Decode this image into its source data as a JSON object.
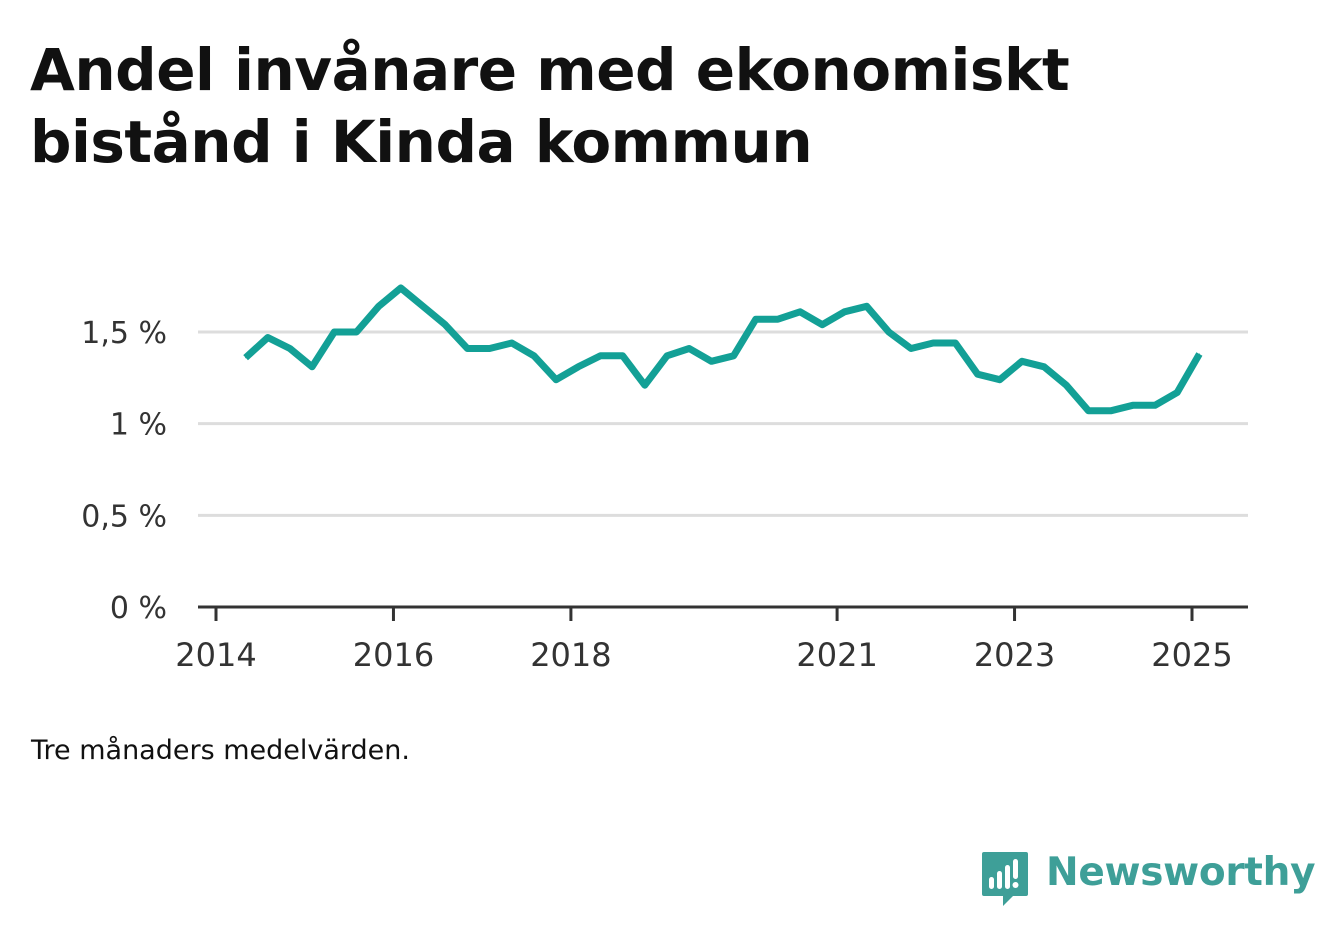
{
  "title": "Andel invånare med ekonomiskt bistånd i Kinda kommun",
  "note": "Tre månaders medelvärden.",
  "brand": {
    "name": "Newsworthy",
    "icon": "bar-chart-speech-bubble-icon",
    "color": "#3e9f98"
  },
  "chart_data": {
    "type": "line",
    "title": "Andel invånare med ekonomiskt bistånd i Kinda kommun",
    "xlabel": "",
    "ylabel": "",
    "x_ticks": [
      "2014",
      "2016",
      "2018",
      "2021",
      "2023",
      "2025"
    ],
    "y_ticks": [
      "0 %",
      "0,5 %",
      "1 %",
      "1,5 %"
    ],
    "ylim": [
      0,
      1.75
    ],
    "grid": true,
    "legend": "none",
    "line_color": "#13a096",
    "series": [
      {
        "x": [
          "2014-05",
          "2014-08",
          "2014-11",
          "2015-02",
          "2015-05",
          "2015-08",
          "2015-11",
          "2016-02",
          "2016-05",
          "2016-08",
          "2016-11",
          "2017-02",
          "2017-05",
          "2017-08",
          "2017-11",
          "2018-02",
          "2018-05",
          "2018-08",
          "2018-11",
          "2019-02",
          "2019-05",
          "2019-08",
          "2019-11",
          "2020-02",
          "2020-05",
          "2020-08",
          "2020-11",
          "2021-02",
          "2021-05",
          "2021-08",
          "2021-11",
          "2022-02",
          "2022-05",
          "2022-08",
          "2022-11",
          "2023-02",
          "2023-05",
          "2023-08",
          "2023-11",
          "2024-02",
          "2024-05",
          "2024-08",
          "2024-11",
          "2025-02"
        ],
        "values": [
          1.36,
          1.47,
          1.41,
          1.31,
          1.5,
          1.5,
          1.64,
          1.74,
          1.64,
          1.54,
          1.41,
          1.41,
          1.44,
          1.37,
          1.24,
          1.31,
          1.37,
          1.37,
          1.21,
          1.37,
          1.41,
          1.34,
          1.37,
          1.57,
          1.57,
          1.61,
          1.54,
          1.61,
          1.64,
          1.5,
          1.41,
          1.44,
          1.44,
          1.27,
          1.24,
          1.34,
          1.31,
          1.21,
          1.07,
          1.07,
          1.1,
          1.1,
          1.17,
          1.38
        ]
      }
    ]
  }
}
